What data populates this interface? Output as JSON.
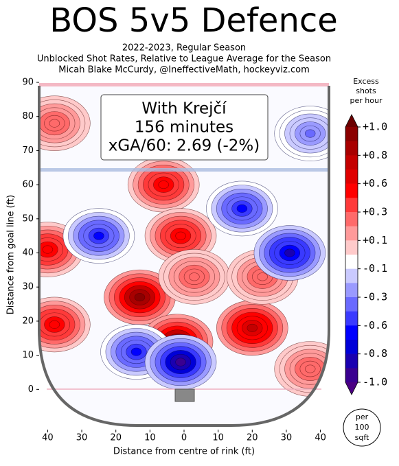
{
  "chart_data": {
    "type": "contour",
    "title": "BOS 5v5 Defence",
    "subtitle": [
      "2022-2023, Regular Season",
      "Unblocked Shot Rates, Relative to League Average for the Season",
      "Micah Blake McCurdy, @IneffectiveMath, hockeyviz.com"
    ],
    "annotation": [
      "With Krejčí",
      "156 minutes",
      "xGA/60: 2.69 (-2%)"
    ],
    "xlabel": "Distance from centre of rink (ft)",
    "ylabel": "Distance from goal line (ft)",
    "xlim": [
      -42.5,
      42.5
    ],
    "ylim": [
      -11,
      90
    ],
    "xticks": [
      {
        "value": -40,
        "label": "40"
      },
      {
        "value": -30,
        "label": "30"
      },
      {
        "value": -20,
        "label": "20"
      },
      {
        "value": -10,
        "label": "10"
      },
      0,
      10,
      20,
      30,
      40
    ],
    "yticks": [
      0,
      10,
      20,
      30,
      40,
      50,
      60,
      70,
      80,
      90
    ],
    "colorbar_title": [
      "Excess",
      "shots",
      "per hour"
    ],
    "colorbar_ticks": [
      {
        "value": 1.0,
        "label": "+1.0"
      },
      {
        "value": 0.8,
        "label": "+0.8"
      },
      {
        "value": 0.6,
        "label": "+0.6"
      },
      {
        "value": 0.3,
        "label": "+0.3"
      },
      {
        "value": 0.1,
        "label": "+0.1"
      },
      {
        "value": -0.1,
        "label": "-0.1"
      },
      {
        "value": -0.3,
        "label": "-0.3"
      },
      {
        "value": -0.6,
        "label": "-0.6"
      },
      {
        "value": -0.8,
        "label": "-0.8"
      },
      {
        "value": -1.0,
        "label": "-1.0"
      }
    ],
    "colors": [
      "#6b0000",
      "#8b0000",
      "#a80000",
      "#c40000",
      "#e00000",
      "#ff0000",
      "#ff3a3a",
      "#ff6a6a",
      "#ff9a9a",
      "#ffcaca",
      "#ffffff",
      "#cacaff",
      "#9a9aff",
      "#6a6aff",
      "#3a3aff",
      "#0000ff",
      "#0000d8",
      "#1a00b0",
      "#3a0090",
      "#4b0082"
    ],
    "unit_note": [
      "per",
      "100",
      "sqft"
    ],
    "hotspots": [
      {
        "x": -13,
        "y": 27,
        "value": 1.0
      },
      {
        "x": -2,
        "y": 14,
        "value": 1.0
      },
      {
        "x": 20,
        "y": 18,
        "value": 0.8
      },
      {
        "x": -38,
        "y": 19,
        "value": 0.6
      },
      {
        "x": -40,
        "y": 41,
        "value": 0.6
      },
      {
        "x": -6,
        "y": 60,
        "value": 0.6
      },
      {
        "x": -1,
        "y": 45,
        "value": 0.6
      },
      {
        "x": 3,
        "y": 33,
        "value": 0.3
      },
      {
        "x": 23,
        "y": 33,
        "value": 0.3
      },
      {
        "x": -38,
        "y": 78,
        "value": 0.3
      },
      {
        "x": 37,
        "y": 6,
        "value": 0.3
      },
      {
        "x": -14,
        "y": 11,
        "value": -0.6
      },
      {
        "x": -1,
        "y": 8,
        "value": -1.0
      },
      {
        "x": -25,
        "y": 45,
        "value": -0.6
      },
      {
        "x": 31,
        "y": 40,
        "value": -0.8
      },
      {
        "x": 17,
        "y": 53,
        "value": -0.6
      },
      {
        "x": 37,
        "y": 75,
        "value": -0.3
      }
    ]
  }
}
